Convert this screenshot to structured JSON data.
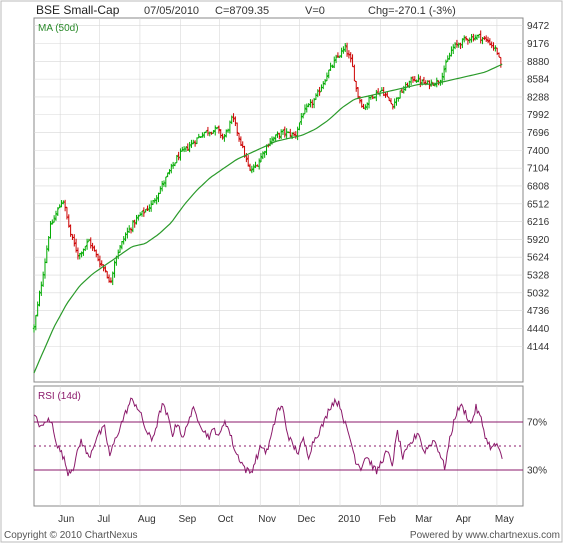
{
  "header": {
    "title": "BSE Small-Cap",
    "date": "07/05/2010",
    "close": "C=8709.35",
    "volume": "V=0",
    "change": "Chg=-270.1 (-3%)"
  },
  "footer": {
    "copyright": "Copyright © 2010 ChartNexus",
    "powered": "Powered by www.chartnexus.com"
  },
  "colors": {
    "up": "#00aa00",
    "down": "#cc0000",
    "ma": "#2a9a2a",
    "rsi": "#8b1a6b",
    "grid": "#d8d8d8"
  },
  "chart_data": [
    {
      "type": "line",
      "chart": "price-candlestick",
      "legend": "MA (50d)",
      "ylim": [
        3550,
        9600
      ],
      "yticks": [
        9472,
        9176,
        8880,
        8584,
        8288,
        7992,
        7696,
        7400,
        7104,
        6808,
        6512,
        6216,
        5920,
        5624,
        5328,
        5032,
        4736,
        4440,
        4144
      ],
      "months": [
        {
          "label": "Jun",
          "day": 20
        },
        {
          "label": "Jul",
          "day": 50
        },
        {
          "label": "Aug",
          "day": 81
        },
        {
          "label": "Sep",
          "day": 112
        },
        {
          "label": "Oct",
          "day": 142
        },
        {
          "label": "Nov",
          "day": 173
        },
        {
          "label": "Dec",
          "day": 203
        },
        {
          "label": "2010",
          "day": 234
        },
        {
          "label": "Feb",
          "day": 265
        },
        {
          "label": "Mar",
          "day": 293
        },
        {
          "label": "Apr",
          "day": 324
        },
        {
          "label": "May",
          "day": 354
        }
      ],
      "x_range_days": [
        0,
        364
      ],
      "price_anchors": [
        [
          0,
          4450
        ],
        [
          8,
          5500
        ],
        [
          12,
          6100
        ],
        [
          18,
          6400
        ],
        [
          22,
          6600
        ],
        [
          28,
          6000
        ],
        [
          34,
          5650
        ],
        [
          42,
          5900
        ],
        [
          50,
          5550
        ],
        [
          55,
          5400
        ],
        [
          58,
          5150
        ],
        [
          62,
          5600
        ],
        [
          70,
          6000
        ],
        [
          80,
          6300
        ],
        [
          90,
          6500
        ],
        [
          100,
          6900
        ],
        [
          110,
          7300
        ],
        [
          120,
          7500
        ],
        [
          130,
          7700
        ],
        [
          140,
          7750
        ],
        [
          145,
          7600
        ],
        [
          152,
          7950
        ],
        [
          160,
          7400
        ],
        [
          165,
          7050
        ],
        [
          170,
          7150
        ],
        [
          180,
          7550
        ],
        [
          190,
          7700
        ],
        [
          200,
          7650
        ],
        [
          205,
          8000
        ],
        [
          215,
          8250
        ],
        [
          225,
          8700
        ],
        [
          232,
          8950
        ],
        [
          238,
          9100
        ],
        [
          243,
          8850
        ],
        [
          247,
          8350
        ],
        [
          252,
          8100
        ],
        [
          258,
          8300
        ],
        [
          266,
          8400
        ],
        [
          274,
          8150
        ],
        [
          280,
          8350
        ],
        [
          290,
          8600
        ],
        [
          300,
          8500
        ],
        [
          310,
          8550
        ],
        [
          320,
          9100
        ],
        [
          330,
          9250
        ],
        [
          340,
          9300
        ],
        [
          348,
          9200
        ],
        [
          354,
          9050
        ],
        [
          358,
          8709
        ]
      ],
      "ma_anchors": [
        [
          0,
          3700
        ],
        [
          8,
          4100
        ],
        [
          15,
          4450
        ],
        [
          25,
          4850
        ],
        [
          35,
          5150
        ],
        [
          45,
          5350
        ],
        [
          55,
          5500
        ],
        [
          65,
          5650
        ],
        [
          75,
          5800
        ],
        [
          85,
          5850
        ],
        [
          95,
          6000
        ],
        [
          105,
          6200
        ],
        [
          115,
          6500
        ],
        [
          125,
          6750
        ],
        [
          135,
          6950
        ],
        [
          145,
          7100
        ],
        [
          155,
          7250
        ],
        [
          165,
          7350
        ],
        [
          175,
          7450
        ],
        [
          185,
          7550
        ],
        [
          195,
          7600
        ],
        [
          205,
          7650
        ],
        [
          215,
          7750
        ],
        [
          225,
          7900
        ],
        [
          235,
          8100
        ],
        [
          245,
          8250
        ],
        [
          255,
          8300
        ],
        [
          265,
          8350
        ],
        [
          275,
          8400
        ],
        [
          285,
          8450
        ],
        [
          295,
          8500
        ],
        [
          305,
          8500
        ],
        [
          315,
          8550
        ],
        [
          325,
          8600
        ],
        [
          335,
          8650
        ],
        [
          345,
          8700
        ],
        [
          358,
          8830
        ]
      ]
    },
    {
      "type": "line",
      "chart": "rsi",
      "legend": "RSI (14d)",
      "ylim": [
        0,
        100
      ],
      "levels": [
        {
          "value": 70,
          "label": "70%"
        },
        {
          "value": 30,
          "label": "30%"
        }
      ],
      "midline": 50,
      "rsi_anchors": [
        [
          0,
          75
        ],
        [
          6,
          65
        ],
        [
          10,
          72
        ],
        [
          14,
          68
        ],
        [
          18,
          50
        ],
        [
          22,
          42
        ],
        [
          26,
          28
        ],
        [
          30,
          32
        ],
        [
          36,
          55
        ],
        [
          42,
          40
        ],
        [
          48,
          58
        ],
        [
          54,
          65
        ],
        [
          58,
          42
        ],
        [
          62,
          55
        ],
        [
          68,
          72
        ],
        [
          74,
          88
        ],
        [
          78,
          85
        ],
        [
          82,
          75
        ],
        [
          86,
          62
        ],
        [
          90,
          55
        ],
        [
          94,
          68
        ],
        [
          98,
          85
        ],
        [
          102,
          75
        ],
        [
          106,
          60
        ],
        [
          110,
          70
        ],
        [
          114,
          55
        ],
        [
          118,
          72
        ],
        [
          122,
          80
        ],
        [
          126,
          72
        ],
        [
          130,
          62
        ],
        [
          134,
          58
        ],
        [
          138,
          64
        ],
        [
          142,
          58
        ],
        [
          146,
          72
        ],
        [
          150,
          60
        ],
        [
          154,
          45
        ],
        [
          158,
          38
        ],
        [
          162,
          30
        ],
        [
          166,
          28
        ],
        [
          170,
          40
        ],
        [
          174,
          50
        ],
        [
          178,
          45
        ],
        [
          182,
          60
        ],
        [
          186,
          80
        ],
        [
          190,
          82
        ],
        [
          194,
          60
        ],
        [
          198,
          50
        ],
        [
          202,
          45
        ],
        [
          206,
          55
        ],
        [
          210,
          42
        ],
        [
          214,
          55
        ],
        [
          218,
          62
        ],
        [
          222,
          70
        ],
        [
          226,
          82
        ],
        [
          230,
          88
        ],
        [
          234,
          84
        ],
        [
          238,
          68
        ],
        [
          242,
          55
        ],
        [
          246,
          38
        ],
        [
          250,
          32
        ],
        [
          254,
          42
        ],
        [
          258,
          35
        ],
        [
          262,
          28
        ],
        [
          266,
          38
        ],
        [
          270,
          45
        ],
        [
          274,
          35
        ],
        [
          278,
          62
        ],
        [
          282,
          40
        ],
        [
          286,
          48
        ],
        [
          290,
          55
        ],
        [
          294,
          62
        ],
        [
          298,
          45
        ],
        [
          302,
          50
        ],
        [
          306,
          55
        ],
        [
          310,
          45
        ],
        [
          314,
          32
        ],
        [
          318,
          55
        ],
        [
          322,
          75
        ],
        [
          326,
          84
        ],
        [
          330,
          78
        ],
        [
          334,
          68
        ],
        [
          338,
          82
        ],
        [
          342,
          72
        ],
        [
          346,
          55
        ],
        [
          350,
          48
        ],
        [
          354,
          52
        ],
        [
          358,
          38
        ]
      ]
    }
  ]
}
